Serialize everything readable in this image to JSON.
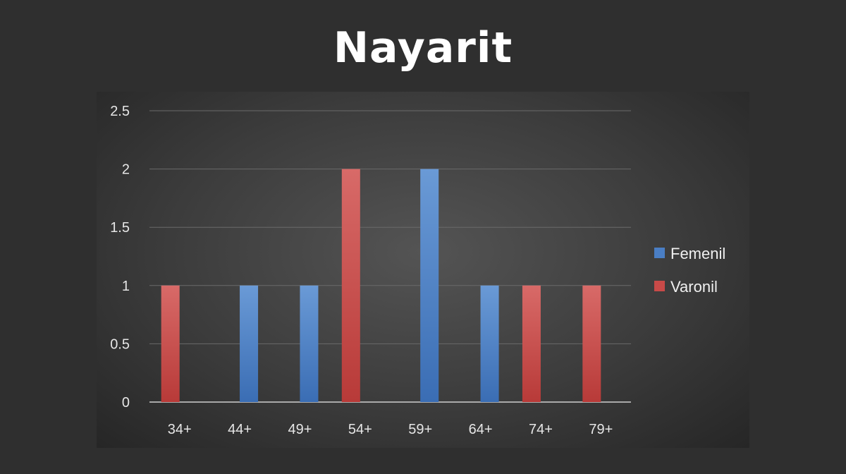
{
  "title": "Nayarit",
  "chart_data": {
    "type": "bar",
    "title": "Nayarit",
    "xlabel": "",
    "ylabel": "",
    "categories": [
      "34+",
      "44+",
      "49+",
      "54+",
      "59+",
      "64+",
      "74+",
      "79+"
    ],
    "series": [
      {
        "name": "Femenil",
        "values": [
          0,
          1,
          1,
          0,
          2,
          1,
          0,
          0
        ],
        "color": "#4a7ec4"
      },
      {
        "name": "Varonil",
        "values": [
          1,
          0,
          0,
          2,
          0,
          0,
          1,
          1
        ],
        "color": "#c84a48"
      }
    ],
    "ylim": [
      0,
      2.5
    ],
    "yticks": [
      "0",
      "0.5",
      "1",
      "1.5",
      "2",
      "2.5"
    ],
    "grid": true,
    "legend_position": "right"
  }
}
